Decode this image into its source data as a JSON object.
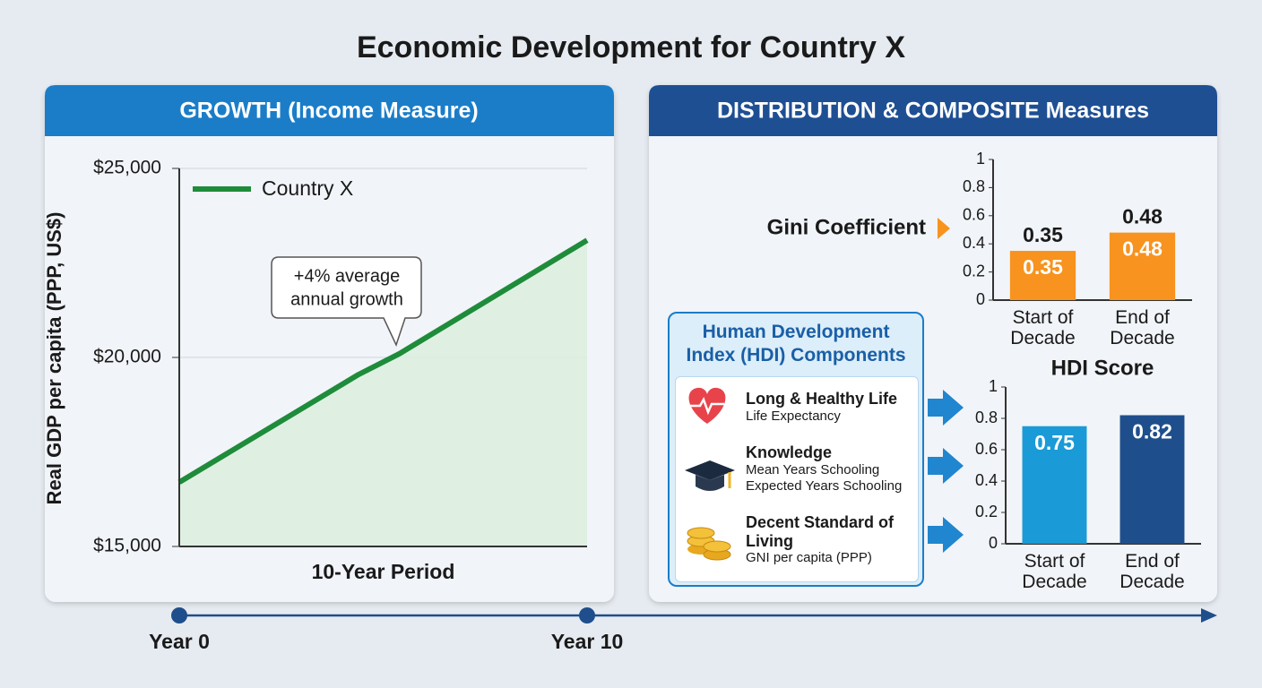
{
  "title": "Economic Development for Country X",
  "panels": {
    "growth": "GROWTH (Income Measure)",
    "distribution": "DISTRIBUTION & COMPOSITE Measures"
  },
  "hdi_components": {
    "title": "Human Development Index (HDI) Components",
    "items": [
      {
        "name": "Long & Healthy Life",
        "indicators": [
          "Life Expectancy"
        ]
      },
      {
        "name": "Knowledge",
        "indicators": [
          "Mean Years Schooling",
          "Expected Years Schooling"
        ]
      },
      {
        "name": "Decent Standard of Living",
        "indicators": [
          "GNI per capita (PPP)"
        ]
      }
    ]
  },
  "chart_data": [
    {
      "type": "line",
      "y_label": "Real GDP per capita (PPP, US$)",
      "x_label": "10-Year Period",
      "x": [
        0,
        4.4,
        5.4,
        10
      ],
      "series": [
        {
          "name": "Country X",
          "color": "#1e8c3a",
          "values": [
            16700,
            19550,
            20100,
            23100
          ]
        }
      ],
      "annotation": [
        "+4% average",
        "annual growth"
      ],
      "xlim": [
        0,
        10
      ],
      "xticks": [
        {
          "value": 0,
          "label": "Year 0"
        },
        {
          "value": 10,
          "label": "Year 10"
        }
      ],
      "ylim": [
        15000,
        25000
      ],
      "yticks": [
        {
          "value": 15000,
          "label": "$15,000"
        },
        {
          "value": 20000,
          "label": "$20,000"
        },
        {
          "value": 25000,
          "label": "$25,000"
        }
      ],
      "grid": true
    },
    {
      "type": "bar",
      "title": "Gini Coefficient",
      "categories": [
        "Start of Decade",
        "End of Decade"
      ],
      "values": [
        0.35,
        0.48
      ],
      "color": "#f7931e",
      "labels": [
        "outside",
        "inside"
      ],
      "ylim": [
        0,
        1
      ],
      "yticks": [
        0,
        0.2,
        0.4,
        0.6,
        0.8,
        1
      ]
    },
    {
      "type": "bar",
      "title": "HDI Score",
      "categories": [
        "Start of Decade",
        "End of Decade"
      ],
      "values": [
        0.75,
        0.82
      ],
      "colors": [
        "#1a9ad6",
        "#1f4e8c"
      ],
      "labels": [
        "inside"
      ],
      "ylim": [
        0,
        1
      ],
      "yticks": [
        0,
        0.2,
        0.4,
        0.6,
        0.8,
        1
      ]
    }
  ]
}
